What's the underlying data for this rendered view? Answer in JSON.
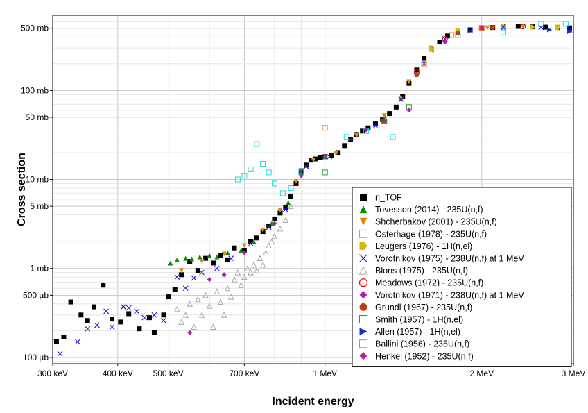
{
  "chart_data": {
    "type": "scatter",
    "xlabel": "Incident energy",
    "ylabel": "Cross section",
    "x_scale": "log",
    "y_scale": "log",
    "xlim": [
      0.3,
      3.0
    ],
    "ylim": [
      0.085,
      700
    ],
    "x_unit": "MeV",
    "y_unit": "mb",
    "grid": true,
    "legend_position": "right",
    "x_ticks": [
      {
        "value": 0.3,
        "label": "300 keV"
      },
      {
        "value": 0.4,
        "label": "400 keV"
      },
      {
        "value": 0.5,
        "label": "500 keV"
      },
      {
        "value": 0.7,
        "label": "700 keV"
      },
      {
        "value": 1.0,
        "label": "1 MeV"
      },
      {
        "value": 2.0,
        "label": "2 MeV"
      },
      {
        "value": 3.0,
        "label": "3 MeV"
      }
    ],
    "y_ticks": [
      {
        "value": 0.1,
        "label": "100 µb"
      },
      {
        "value": 0.5,
        "label": "500 µb"
      },
      {
        "value": 1,
        "label": "1 mb"
      },
      {
        "value": 5,
        "label": "5 mb"
      },
      {
        "value": 10,
        "label": "10 mb"
      },
      {
        "value": 50,
        "label": "50 mb"
      },
      {
        "value": 100,
        "label": "100 mb"
      },
      {
        "value": 500,
        "label": "500 mb"
      }
    ],
    "series": [
      {
        "name": "n_TOF",
        "marker": "square-filled",
        "color": "#000000",
        "points": [
          [
            0.305,
            0.15
          ],
          [
            0.315,
            0.17
          ],
          [
            0.325,
            0.42
          ],
          [
            0.34,
            0.3
          ],
          [
            0.35,
            0.26
          ],
          [
            0.36,
            0.37
          ],
          [
            0.375,
            0.65
          ],
          [
            0.39,
            0.27
          ],
          [
            0.405,
            0.25
          ],
          [
            0.42,
            0.31
          ],
          [
            0.44,
            0.21
          ],
          [
            0.46,
            0.28
          ],
          [
            0.47,
            0.19
          ],
          [
            0.49,
            0.3
          ],
          [
            0.5,
            0.48
          ],
          [
            0.515,
            0.58
          ],
          [
            0.53,
            0.85
          ],
          [
            0.55,
            1.2
          ],
          [
            0.57,
            0.95
          ],
          [
            0.59,
            1.3
          ],
          [
            0.61,
            1.15
          ],
          [
            0.63,
            1.4
          ],
          [
            0.65,
            1.25
          ],
          [
            0.67,
            1.7
          ],
          [
            0.7,
            1.6
          ],
          [
            0.72,
            2.0
          ],
          [
            0.74,
            2.2
          ],
          [
            0.76,
            2.6
          ],
          [
            0.78,
            3.0
          ],
          [
            0.8,
            3.6
          ],
          [
            0.82,
            4.2
          ],
          [
            0.84,
            4.8
          ],
          [
            0.86,
            6.5
          ],
          [
            0.88,
            9.0
          ],
          [
            0.9,
            12.5
          ],
          [
            0.92,
            14.5
          ],
          [
            0.94,
            16.5
          ],
          [
            0.96,
            17.0
          ],
          [
            0.98,
            17.5
          ],
          [
            1.0,
            18.0
          ],
          [
            1.03,
            18.5
          ],
          [
            1.06,
            20
          ],
          [
            1.09,
            24
          ],
          [
            1.12,
            28
          ],
          [
            1.15,
            32
          ],
          [
            1.18,
            35
          ],
          [
            1.21,
            38
          ],
          [
            1.25,
            42
          ],
          [
            1.29,
            47
          ],
          [
            1.33,
            55
          ],
          [
            1.37,
            65
          ],
          [
            1.41,
            85
          ],
          [
            1.45,
            120
          ],
          [
            1.5,
            170
          ],
          [
            1.55,
            230
          ],
          [
            1.6,
            290
          ],
          [
            1.66,
            350
          ],
          [
            1.72,
            410
          ],
          [
            1.8,
            450
          ],
          [
            1.9,
            480
          ],
          [
            2.0,
            500
          ],
          [
            2.1,
            510
          ],
          [
            2.2,
            520
          ],
          [
            2.35,
            525
          ],
          [
            2.5,
            520
          ],
          [
            2.65,
            515
          ],
          [
            2.8,
            510
          ],
          [
            2.95,
            505
          ]
        ]
      },
      {
        "name": "Tovesson (2014) - 235U(n,f)",
        "marker": "triangle-up-filled",
        "color": "#0a8a0a",
        "points": [
          [
            0.505,
            1.15
          ],
          [
            0.52,
            1.25
          ],
          [
            0.54,
            1.3
          ],
          [
            0.555,
            1.28
          ],
          [
            0.575,
            1.35
          ],
          [
            0.6,
            1.4
          ],
          [
            0.62,
            1.35
          ],
          [
            0.65,
            1.5
          ],
          [
            0.69,
            1.6
          ],
          [
            0.73,
            2.0
          ],
          [
            0.79,
            3.2
          ],
          [
            0.85,
            5.5
          ],
          [
            0.9,
            12
          ],
          [
            1.0,
            18
          ],
          [
            1.3,
            52
          ],
          [
            1.6,
            300
          ]
        ]
      },
      {
        "name": "Shcherbakov (2001)  - 235U(n,f)",
        "marker": "triangle-down-filled",
        "color": "#e08a0a",
        "points": [
          [
            0.53,
            0.95
          ],
          [
            0.58,
            1.2
          ],
          [
            0.64,
            1.45
          ],
          [
            0.7,
            1.8
          ],
          [
            0.76,
            2.7
          ],
          [
            0.82,
            4.5
          ],
          [
            0.88,
            9.5
          ],
          [
            0.95,
            16.5
          ],
          [
            1.05,
            19.5
          ],
          [
            1.15,
            31
          ],
          [
            1.3,
            52
          ],
          [
            1.45,
            125
          ],
          [
            1.6,
            300
          ],
          [
            1.8,
            460
          ],
          [
            2.05,
            505
          ],
          [
            2.4,
            520
          ],
          [
            2.8,
            515
          ]
        ]
      },
      {
        "name": "Osterhage (1978) - 235U(n,f)",
        "marker": "square-open",
        "color": "#20d8d8",
        "points": [
          [
            0.68,
            10
          ],
          [
            0.7,
            11
          ],
          [
            0.72,
            13
          ],
          [
            0.74,
            25
          ],
          [
            0.76,
            15
          ],
          [
            0.78,
            12
          ],
          [
            0.8,
            9
          ],
          [
            0.83,
            7
          ],
          [
            0.86,
            8
          ],
          [
            0.9,
            12
          ],
          [
            1.1,
            30
          ],
          [
            1.2,
            35
          ],
          [
            1.35,
            30
          ],
          [
            1.6,
            280
          ],
          [
            1.8,
            420
          ],
          [
            2.2,
            450
          ],
          [
            2.6,
            560
          ],
          [
            2.9,
            560
          ]
        ]
      },
      {
        "name": "Leugers (1976) - 1H(n,el)",
        "marker": "pentagon-right-filled",
        "color": "#d8b810",
        "points": [
          [
            1.4,
            80
          ],
          [
            1.6,
            290
          ],
          [
            1.8,
            470
          ],
          [
            2.0,
            505
          ],
          [
            2.2,
            520
          ],
          [
            2.5,
            515
          ],
          [
            2.8,
            510
          ]
        ]
      },
      {
        "name": "Vorotnikov (1975) - 238U(n,f) at 1 MeV",
        "marker": "x",
        "color": "#2020e0",
        "points": [
          [
            0.31,
            0.11
          ],
          [
            0.335,
            0.15
          ],
          [
            0.35,
            0.21
          ],
          [
            0.365,
            0.23
          ],
          [
            0.38,
            0.33
          ],
          [
            0.39,
            0.22
          ],
          [
            0.41,
            0.37
          ],
          [
            0.42,
            0.36
          ],
          [
            0.435,
            0.33
          ],
          [
            0.45,
            0.28
          ],
          [
            0.47,
            0.3
          ],
          [
            0.49,
            0.26
          ],
          [
            0.52,
            0.8
          ],
          [
            0.54,
            0.6
          ],
          [
            0.56,
            0.78
          ],
          [
            0.58,
            0.9
          ],
          [
            0.62,
            1.0
          ],
          [
            0.66,
            1.3
          ],
          [
            0.72,
            1.9
          ],
          [
            0.78,
            2.9
          ],
          [
            0.84,
            4.6
          ],
          [
            0.92,
            14
          ],
          [
            1.02,
            18
          ],
          [
            1.12,
            28
          ],
          [
            1.25,
            40
          ],
          [
            1.4,
            80
          ],
          [
            1.55,
            200
          ],
          [
            1.7,
            380
          ],
          [
            1.9,
            470
          ],
          [
            2.2,
            510
          ],
          [
            2.6,
            510
          ],
          [
            2.95,
            480
          ]
        ]
      },
      {
        "name": "Blons (1975) - 235U(n,f)",
        "marker": "triangle-up-open",
        "color": "#a8a8a8",
        "points": [
          [
            0.52,
            0.35
          ],
          [
            0.53,
            0.25
          ],
          [
            0.54,
            0.3
          ],
          [
            0.55,
            0.4
          ],
          [
            0.56,
            0.22
          ],
          [
            0.57,
            0.45
          ],
          [
            0.58,
            0.3
          ],
          [
            0.59,
            0.5
          ],
          [
            0.6,
            0.38
          ],
          [
            0.61,
            0.22
          ],
          [
            0.62,
            0.55
          ],
          [
            0.63,
            0.42
          ],
          [
            0.64,
            0.3
          ],
          [
            0.65,
            0.6
          ],
          [
            0.66,
            0.48
          ],
          [
            0.67,
            0.75
          ],
          [
            0.68,
            0.9
          ],
          [
            0.69,
            0.65
          ],
          [
            0.7,
            0.8
          ],
          [
            0.71,
            1.0
          ],
          [
            0.72,
            0.9
          ],
          [
            0.73,
            1.1
          ],
          [
            0.74,
            0.95
          ],
          [
            0.75,
            1.3
          ],
          [
            0.76,
            1.1
          ],
          [
            0.77,
            1.5
          ],
          [
            0.78,
            1.8
          ],
          [
            0.79,
            2.0
          ],
          [
            0.8,
            2.3
          ],
          [
            0.82,
            2.8
          ],
          [
            0.84,
            3.5
          ],
          [
            0.86,
            5.0
          ]
        ]
      },
      {
        "name": "Meadows (1972) - 235U(n,f)",
        "marker": "circle-open",
        "color": "#e00000",
        "points": [
          [
            1.3,
            45
          ],
          [
            1.5,
            160
          ],
          [
            1.7,
            380
          ],
          [
            2.0,
            500
          ],
          [
            2.4,
            525
          ]
        ]
      },
      {
        "name": "Vorotnikov (1971) - 238U(n,f) at 1 MeV",
        "marker": "diamond-filled",
        "color": "#b020b0",
        "points": [
          [
            0.55,
            0.19
          ],
          [
            0.6,
            0.75
          ],
          [
            0.64,
            0.85
          ],
          [
            0.7,
            1.5
          ],
          [
            0.8,
            3.2
          ],
          [
            0.9,
            11
          ],
          [
            1.0,
            18
          ],
          [
            1.2,
            36
          ],
          [
            1.45,
            60
          ],
          [
            1.7,
            350
          ],
          [
            2.0,
            500
          ]
        ]
      },
      {
        "name": "Grundl (1967) - 235U(n,f)",
        "marker": "circle-filled",
        "color": "#b84010",
        "points": [
          [
            1.5,
            150
          ],
          [
            1.8,
            440
          ],
          [
            2.1,
            510
          ]
        ]
      },
      {
        "name": "Smith (1957) - 1H(n,el)",
        "marker": "square-open",
        "color": "#20a020",
        "points": [
          [
            1.0,
            12
          ],
          [
            1.3,
            45
          ],
          [
            1.45,
            65
          ]
        ]
      },
      {
        "name": "Allen (1957) - 1H(n,el)",
        "marker": "triangle-right-filled",
        "color": "#1030d0",
        "points": [
          [
            2.7,
            480
          ],
          [
            2.95,
            460
          ]
        ]
      },
      {
        "name": "Ballini (1956) - 235U(n,f)",
        "marker": "square-open",
        "color": "#e88a10",
        "points": [
          [
            1.0,
            38
          ],
          [
            1.55,
            200
          ],
          [
            1.75,
            420
          ],
          [
            2.0,
            505
          ]
        ]
      },
      {
        "name": "Henkel (1952) - 235U(n,f)",
        "marker": "diamond-filled",
        "color": "#b020b0",
        "points": [
          [
            1.3,
            45
          ],
          [
            1.45,
            60
          ]
        ]
      }
    ]
  }
}
